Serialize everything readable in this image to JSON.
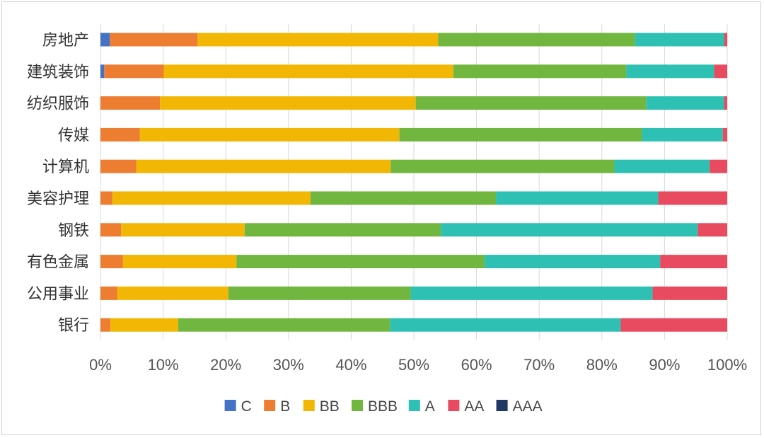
{
  "chart_data": {
    "type": "bar",
    "orientation": "horizontal",
    "stacked": "percent",
    "title": "",
    "xlabel": "",
    "ylabel": "",
    "xlim": [
      0,
      100
    ],
    "x_ticks": [
      "0%",
      "10%",
      "20%",
      "30%",
      "40%",
      "50%",
      "60%",
      "70%",
      "80%",
      "90%",
      "100%"
    ],
    "categories": [
      "房地产",
      "建筑装饰",
      "纺织服饰",
      "传媒",
      "计算机",
      "美容护理",
      "钢铁",
      "有色金属",
      "公用事业",
      "银行"
    ],
    "series": [
      {
        "name": "C",
        "color": "#4472C4",
        "values": [
          1.5,
          0.6,
          0.0,
          0.0,
          0.0,
          0.0,
          0.0,
          0.0,
          0.0,
          0.0
        ]
      },
      {
        "name": "B",
        "color": "#ED7D31",
        "values": [
          14.0,
          9.5,
          9.5,
          6.3,
          5.7,
          1.9,
          3.3,
          3.6,
          2.7,
          1.6
        ]
      },
      {
        "name": "BB",
        "color": "#F2B705",
        "values": [
          38.4,
          46.2,
          40.8,
          41.4,
          40.6,
          31.6,
          19.7,
          18.1,
          17.7,
          10.8
        ]
      },
      {
        "name": "BBB",
        "color": "#71B73F",
        "values": [
          31.4,
          27.6,
          36.8,
          38.7,
          35.7,
          29.6,
          31.3,
          39.6,
          29.1,
          33.8
        ]
      },
      {
        "name": "A",
        "color": "#2EC1B3",
        "values": [
          14.2,
          14.0,
          12.4,
          12.9,
          15.2,
          25.9,
          41.0,
          28.0,
          38.6,
          36.8
        ]
      },
      {
        "name": "AA",
        "color": "#E84A5F",
        "values": [
          0.5,
          2.1,
          0.5,
          0.7,
          2.8,
          11.0,
          4.7,
          10.7,
          11.9,
          17.0
        ]
      },
      {
        "name": "AAA",
        "color": "#203864",
        "values": [
          0,
          0,
          0,
          0,
          0,
          0,
          0,
          0,
          0,
          0
        ]
      }
    ],
    "legend_position": "bottom",
    "grid": true
  }
}
